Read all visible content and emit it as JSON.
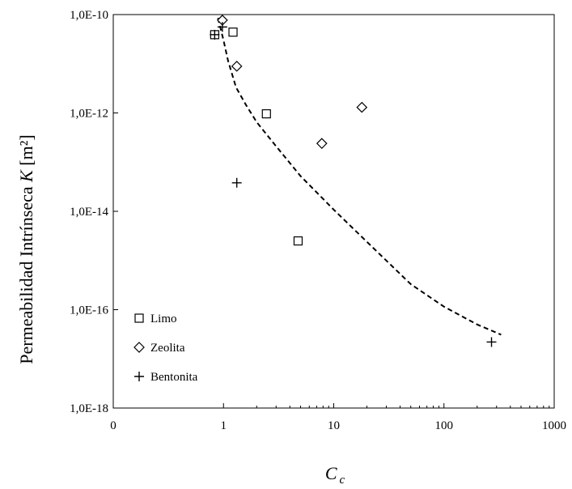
{
  "chart_data": {
    "type": "scatter",
    "xaxis": {
      "label_main": "C",
      "label_sub": "c",
      "scale": "custom-log-with-zero",
      "ticks": [
        0,
        1,
        10,
        100,
        1000
      ],
      "tick_labels": [
        "0",
        "1",
        "10",
        "100",
        "1000"
      ],
      "range": [
        0,
        1000
      ]
    },
    "yaxis": {
      "label_text": "Permeabilidad Intrínseca ",
      "label_var": "K",
      "label_unit": " [m²]",
      "scale": "log",
      "ticks": [
        1e-18,
        1e-16,
        1e-14,
        1e-12,
        1e-10
      ],
      "tick_labels": [
        "1,0E-18",
        "1,0E-16",
        "1,0E-14",
        "1,0E-12",
        "1,0E-10"
      ],
      "range": [
        1e-18,
        1e-10
      ]
    },
    "grid": false,
    "legend": {
      "position": "bottom-left",
      "entries": [
        {
          "label": "Limo",
          "marker": "square"
        },
        {
          "label": "Zeolita",
          "marker": "diamond"
        },
        {
          "label": "Bentonita",
          "marker": "plus"
        }
      ]
    },
    "series": [
      {
        "name": "Limo",
        "marker": "square",
        "points": [
          {
            "x": 0.92,
            "y": 3.9e-11
          },
          {
            "x": 1.22,
            "y": 4.4e-11
          },
          {
            "x": 2.45,
            "y": 9.6e-13
          },
          {
            "x": 4.75,
            "y": 2.5e-15
          }
        ]
      },
      {
        "name": "Zeolita",
        "marker": "diamond",
        "points": [
          {
            "x": 0.99,
            "y": 7.7e-11
          },
          {
            "x": 1.32,
            "y": 8.9e-12
          },
          {
            "x": 7.8,
            "y": 2.4e-13
          },
          {
            "x": 18.0,
            "y": 1.3e-12
          }
        ]
      },
      {
        "name": "Bentonita",
        "marker": "plus",
        "points": [
          {
            "x": 0.92,
            "y": 3.9e-11
          },
          {
            "x": 0.99,
            "y": 5.6e-11
          },
          {
            "x": 1.32,
            "y": 3.8e-14
          },
          {
            "x": 270,
            "y": 2.2e-17
          }
        ]
      }
    ],
    "trend_line": {
      "style": "dashed",
      "points": [
        {
          "x": 0.95,
          "y": 8.5e-11
        },
        {
          "x": 1.0,
          "y": 3e-11
        },
        {
          "x": 1.1,
          "y": 1.15e-11
        },
        {
          "x": 1.3,
          "y": 3.3e-12
        },
        {
          "x": 1.6,
          "y": 1.45e-12
        },
        {
          "x": 2.0,
          "y": 6.5e-13
        },
        {
          "x": 3.0,
          "y": 2.1e-13
        },
        {
          "x": 5.0,
          "y": 5.2e-14
        },
        {
          "x": 10,
          "y": 1.08e-14
        },
        {
          "x": 20,
          "y": 2.4e-15
        },
        {
          "x": 50,
          "y": 3.3e-16
        },
        {
          "x": 100,
          "y": 1.15e-16
        },
        {
          "x": 200,
          "y": 5e-17
        },
        {
          "x": 330,
          "y": 3.1e-17
        }
      ]
    }
  }
}
